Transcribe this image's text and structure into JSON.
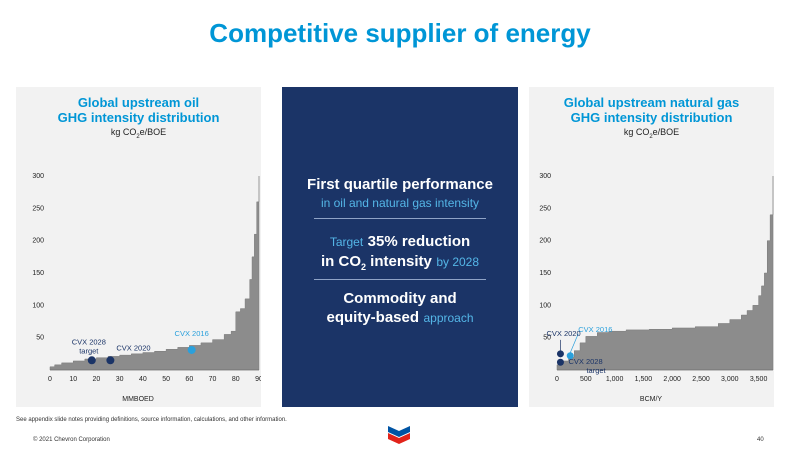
{
  "title": "Competitive supplier of energy",
  "left_panel": {
    "title_line1": "Global upstream oil",
    "title_line2": "GHG intensity distribution",
    "unit_prefix": "kg CO",
    "unit_sub": "2",
    "unit_suffix": "e/BOE"
  },
  "right_panel": {
    "title_line1": "Global upstream natural gas",
    "title_line2": "GHG intensity distribution",
    "unit_prefix": "kg CO",
    "unit_sub": "2",
    "unit_suffix": "e/BOE"
  },
  "center": {
    "p1_strong": "First quartile performance",
    "p1_light": "in oil and natural gas intensity",
    "p2_light_pre": "Target",
    "p2_strong": "35% reduction",
    "p2_strong_2a": "in CO",
    "p2_sub": "2",
    "p2_strong_2b": " intensity",
    "p2_light_post": "by 2028",
    "p3_strong_1": "Commodity and",
    "p3_strong_2": "equity-based",
    "p3_light": "approach"
  },
  "footnote": "See appendix slide notes providing definitions, source information, calculations, and other information.",
  "copyright": "© 2021 Chevron Corporation",
  "page_number": "40",
  "logo_text": "Chevron",
  "colors": {
    "accent": "#0096d6",
    "navy": "#1b3467",
    "area": "#8c8c8c",
    "panel": "#f2f2f2",
    "cvx2016": "#2aa0dc",
    "cvx_dark": "#1b3467"
  },
  "chart_data": [
    {
      "type": "area",
      "xlabel": "MMBOED",
      "ylim": [
        0,
        300
      ],
      "xlim": [
        0,
        90
      ],
      "y_ticks": [
        "50",
        "100",
        "150",
        "200",
        "250",
        "300"
      ],
      "x_ticks": [
        "0",
        "10",
        "20",
        "30",
        "40",
        "50",
        "60",
        "70",
        "80",
        "90"
      ],
      "series": [
        {
          "x": [
            0,
            2,
            5,
            10,
            15,
            20,
            25,
            30,
            35,
            40,
            45,
            50,
            55,
            60,
            65,
            70,
            75,
            78,
            80,
            82,
            84,
            86,
            87,
            88,
            89,
            90
          ],
          "y": [
            5,
            8,
            11,
            14,
            17,
            19,
            21,
            23,
            25,
            27,
            29,
            32,
            35,
            38,
            42,
            47,
            55,
            60,
            90,
            95,
            110,
            140,
            175,
            210,
            260,
            300
          ]
        }
      ],
      "annotations": [
        {
          "label": "CVX 2028",
          "label2": "target",
          "x": 18,
          "y": 15,
          "color": "#1b3467"
        },
        {
          "label": "CVX 2020",
          "x": 26,
          "y": 15,
          "color": "#1b3467"
        },
        {
          "label": "CVX 2016",
          "x": 61,
          "y": 31,
          "color": "#2aa0dc"
        }
      ]
    },
    {
      "type": "area",
      "xlabel": "BCM/Y",
      "ylim": [
        0,
        300
      ],
      "xlim": [
        0,
        3750
      ],
      "y_ticks": [
        "50",
        "100",
        "150",
        "200",
        "250",
        "300"
      ],
      "x_ticks": [
        "0",
        "500",
        "1,000",
        "1,500",
        "2,000",
        "2,500",
        "3,000",
        "3,500"
      ],
      "x_tick_values": [
        0,
        500,
        1000,
        1500,
        2000,
        2500,
        3000,
        3500
      ],
      "series": [
        {
          "x": [
            0,
            100,
            200,
            300,
            400,
            500,
            700,
            900,
            1200,
            1600,
            2000,
            2400,
            2800,
            3000,
            3200,
            3300,
            3400,
            3500,
            3550,
            3600,
            3650,
            3700,
            3750
          ],
          "y": [
            8,
            14,
            20,
            30,
            42,
            52,
            58,
            60,
            62,
            63,
            65,
            67,
            72,
            78,
            85,
            92,
            100,
            115,
            130,
            150,
            200,
            240,
            300
          ]
        }
      ],
      "annotations": [
        {
          "label": "CVX 2016",
          "x": 230,
          "y": 22,
          "color": "#2aa0dc"
        },
        {
          "label": "CVX 2020",
          "x": 60,
          "y": 25,
          "color": "#1b3467"
        },
        {
          "label": "CVX 2028",
          "label2": "target",
          "x": 60,
          "y": 12,
          "color": "#1b3467"
        }
      ]
    }
  ]
}
